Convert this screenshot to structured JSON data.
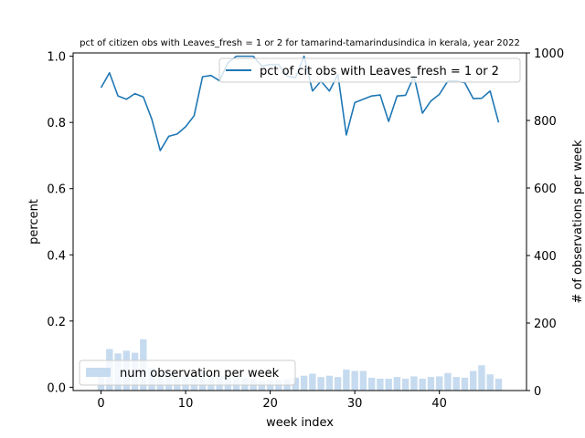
{
  "chart_data": {
    "type": "bar+line",
    "title": "pct of citizen obs with Leaves_fresh = 1 or 2 for tamarind-tamarindusindica in kerala, year 2022",
    "xlabel": "week index",
    "ylabel_left": "percent",
    "ylabel_right": "# of observations per week",
    "xlim": [
      -3.3,
      50.3
    ],
    "ylim_left": [
      -0.01,
      1.01
    ],
    "ylim_right": [
      0,
      1000
    ],
    "x_ticks": [
      0,
      10,
      20,
      30,
      40
    ],
    "y_ticks_left": [
      "0.0",
      "0.2",
      "0.4",
      "0.6",
      "0.8",
      "1.0"
    ],
    "y_ticks_right": [
      "0",
      "200",
      "400",
      "600",
      "800",
      "1000"
    ],
    "colors": {
      "line": "#1f77b4",
      "bars": "#c6dbef"
    },
    "line_series": {
      "name": "pct of cit obs with Leaves_fresh = 1 or 2",
      "legend_position": "top-right",
      "x": [
        0,
        1,
        2,
        3,
        4,
        5,
        6,
        7,
        8,
        9,
        10,
        11,
        12,
        13,
        14,
        15,
        16,
        17,
        18,
        19,
        20,
        21,
        22,
        23,
        24,
        25,
        26,
        27,
        28,
        29,
        30,
        31,
        32,
        33,
        34,
        35,
        36,
        37,
        38,
        39,
        40,
        41,
        42,
        43,
        44,
        45,
        46,
        47
      ],
      "values": [
        0.905,
        0.95,
        0.88,
        0.87,
        0.887,
        0.877,
        0.81,
        0.715,
        0.758,
        0.765,
        0.787,
        0.82,
        0.938,
        0.942,
        0.926,
        0.98,
        1.0,
        1.0,
        1.0,
        0.97,
        0.975,
        0.975,
        0.94,
        0.935,
        1.0,
        0.895,
        0.925,
        0.895,
        0.945,
        0.762,
        0.86,
        0.87,
        0.88,
        0.883,
        0.803,
        0.88,
        0.882,
        0.94,
        0.828,
        0.865,
        0.885,
        0.925,
        0.925,
        0.92,
        0.872,
        0.873,
        0.895,
        0.8
      ]
    },
    "bar_series": {
      "name": "num observation per week",
      "legend_position": "bottom-left",
      "x": [
        0,
        1,
        2,
        3,
        4,
        5,
        6,
        7,
        8,
        9,
        10,
        11,
        12,
        13,
        14,
        15,
        16,
        17,
        18,
        19,
        20,
        21,
        22,
        23,
        24,
        25,
        26,
        27,
        28,
        29,
        30,
        31,
        32,
        33,
        34,
        35,
        36,
        37,
        38,
        39,
        40,
        41,
        42,
        43,
        44,
        45,
        46,
        47
      ],
      "values": [
        68,
        123,
        110,
        118,
        112,
        152,
        68,
        52,
        58,
        48,
        50,
        48,
        55,
        50,
        45,
        42,
        40,
        38,
        35,
        30,
        32,
        32,
        34,
        38,
        44,
        50,
        40,
        44,
        40,
        62,
        58,
        58,
        38,
        35,
        35,
        40,
        35,
        42,
        35,
        40,
        42,
        52,
        40,
        38,
        58,
        75,
        48,
        35
      ]
    }
  }
}
